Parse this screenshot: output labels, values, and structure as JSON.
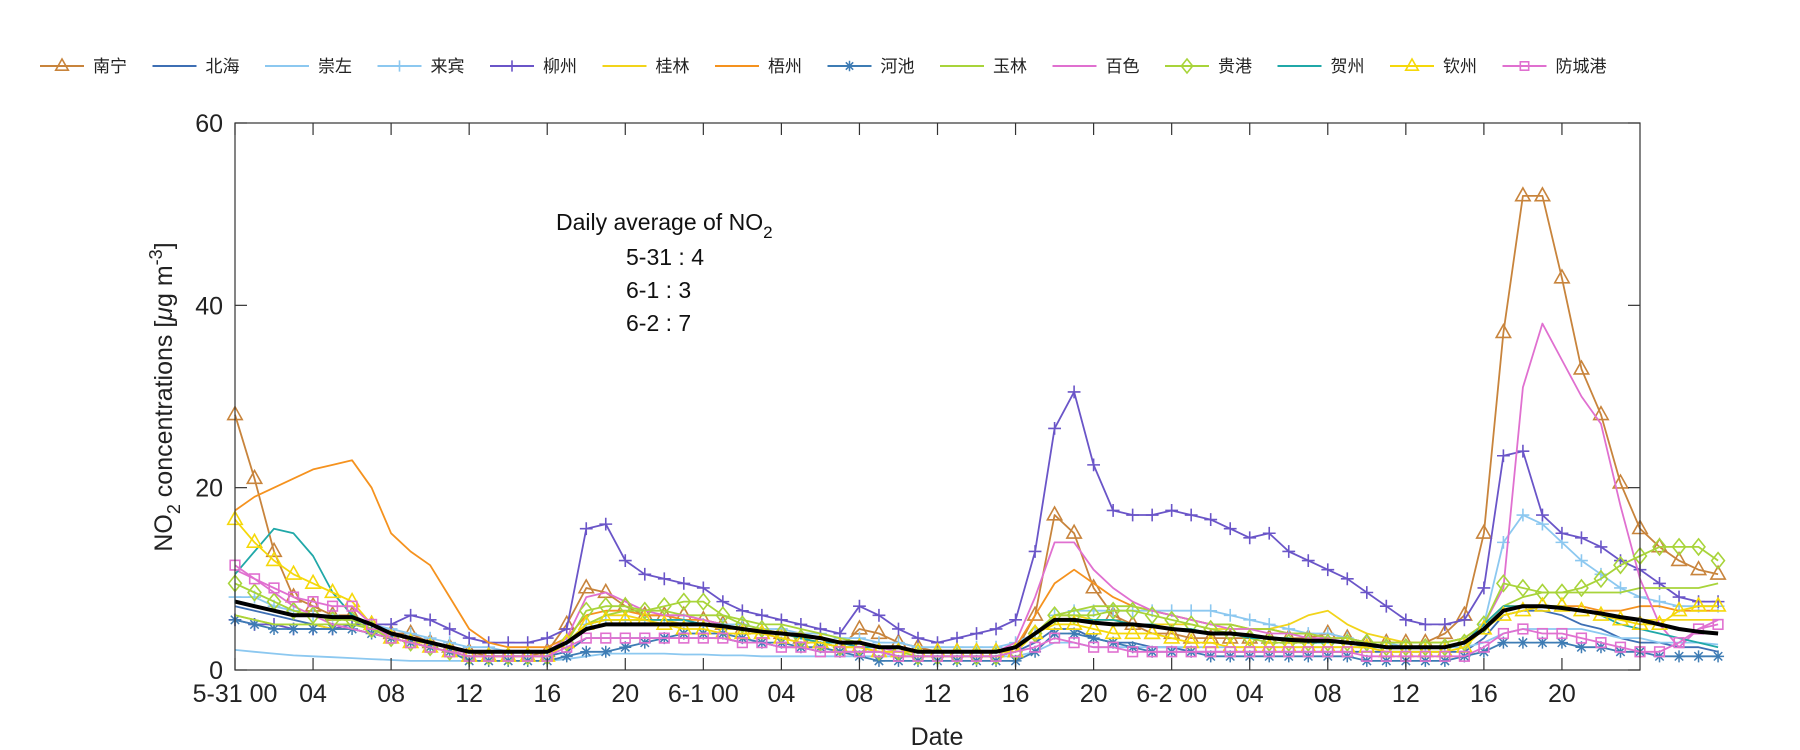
{
  "chart_data": {
    "type": "line",
    "xlabel": "Date",
    "ylabel": "NO",
    "ylabel_sub": "2",
    "ylabel_suffix": " concentrations [",
    "ylabel_mu": "μ",
    "ylabel_unit": "g m",
    "ylabel_sup": "-3",
    "ylabel_end": "]",
    "ylim": [
      0,
      60
    ],
    "yticks": [
      0,
      20,
      40,
      60
    ],
    "x_range": [
      0,
      72
    ],
    "xticks": [
      {
        "x": 0,
        "label": "5-31 00"
      },
      {
        "x": 4,
        "label": "04"
      },
      {
        "x": 8,
        "label": "08"
      },
      {
        "x": 12,
        "label": "12"
      },
      {
        "x": 16,
        "label": "16"
      },
      {
        "x": 20,
        "label": "20"
      },
      {
        "x": 24,
        "label": "6-1 00"
      },
      {
        "x": 28,
        "label": "04"
      },
      {
        "x": 32,
        "label": "08"
      },
      {
        "x": 36,
        "label": "12"
      },
      {
        "x": 40,
        "label": "16"
      },
      {
        "x": 44,
        "label": "20"
      },
      {
        "x": 48,
        "label": "6-2 00"
      },
      {
        "x": 52,
        "label": "04"
      },
      {
        "x": 56,
        "label": "08"
      },
      {
        "x": 60,
        "label": "12"
      },
      {
        "x": 64,
        "label": "16"
      },
      {
        "x": 68,
        "label": "20"
      }
    ],
    "legend_position": "top",
    "grid": false,
    "annotation": {
      "title": "Daily average of NO",
      "title_sub": "2",
      "lines": [
        "5-31 : 4",
        "6-1 : 3",
        "6-2 : 7"
      ]
    },
    "series": [
      {
        "name": "南宁",
        "color": "#c8843c",
        "marker": "triangle",
        "values": [
          28,
          21,
          13,
          8,
          7,
          6,
          6,
          5,
          4,
          4,
          3,
          2.5,
          2,
          1.5,
          1.5,
          1.5,
          2,
          5,
          9,
          8.5,
          7,
          6,
          6,
          6,
          5.5,
          5,
          4.5,
          4,
          4,
          3.5,
          3,
          2.5,
          4.5,
          4,
          3,
          2.5,
          2,
          2,
          2,
          2,
          2,
          6,
          17,
          15,
          9,
          6,
          5,
          4,
          4,
          3.5,
          3.5,
          3.5,
          3.5,
          3.5,
          3.5,
          3.5,
          4,
          3.5,
          3,
          3,
          3,
          3,
          4,
          6,
          15,
          37,
          52,
          52,
          43,
          33,
          28,
          20.5,
          15.5,
          13.5,
          12,
          11,
          10.5
        ]
      },
      {
        "name": "北海",
        "color": "#3e6fb4",
        "marker": "none",
        "values": [
          7,
          6.5,
          6,
          5.5,
          5,
          4.5,
          4.5,
          4,
          3.5,
          3,
          2.5,
          2,
          1.5,
          1.5,
          1.5,
          1.5,
          1.5,
          2,
          3.5,
          3.5,
          3.5,
          3.5,
          3.5,
          3.5,
          3.5,
          3.5,
          3,
          3,
          2.5,
          2.5,
          2,
          2,
          2,
          2,
          1.5,
          1.5,
          1.5,
          1.5,
          1.5,
          1.5,
          2,
          3,
          4.5,
          4.5,
          3.5,
          3,
          3,
          2.5,
          2.5,
          2,
          2,
          2,
          2,
          2,
          2,
          2,
          2,
          2,
          2,
          2,
          2,
          2,
          2,
          2,
          3.5,
          6,
          6.5,
          6.5,
          6,
          5,
          4.5,
          3.5,
          3,
          3,
          2.5,
          2.5,
          2
        ]
      },
      {
        "name": "崇左",
        "color": "#8cc8f0",
        "marker": "none",
        "values": [
          2.2,
          2,
          1.8,
          1.6,
          1.5,
          1.4,
          1.3,
          1.2,
          1.1,
          1,
          1,
          1,
          1,
          1,
          1,
          1,
          1,
          1.2,
          1.5,
          1.8,
          1.8,
          1.8,
          1.8,
          1.7,
          1.7,
          1.6,
          1.6,
          1.5,
          1.5,
          1.5,
          1.5,
          1.5,
          1.5,
          1.5,
          1.5,
          1.5,
          1.5,
          1.5,
          1.5,
          1.5,
          1.5,
          2,
          3,
          3,
          2.5,
          2.5,
          2.5,
          2.5,
          2.5,
          2.5,
          2.5,
          2.5,
          2.5,
          2.5,
          2.5,
          2.5,
          2.5,
          2.5,
          2.5,
          2.5,
          2.5,
          2.5,
          2.5,
          2.5,
          3,
          4,
          4.5,
          4.5,
          4.5,
          4.5,
          4,
          3.5,
          3.5,
          3,
          3,
          3,
          2.8
        ]
      },
      {
        "name": "来宾",
        "color": "#8cc8f0",
        "marker": "plus",
        "values": [
          8,
          8,
          7,
          6.5,
          6,
          6,
          5.5,
          5,
          4.5,
          4,
          3.5,
          3,
          2.5,
          2.5,
          2,
          2,
          2,
          3,
          5,
          5.5,
          5.5,
          5.5,
          5.5,
          5.5,
          5,
          5,
          5,
          4.5,
          4.5,
          4,
          4,
          3.5,
          3.5,
          3,
          3,
          2.5,
          2.5,
          2.5,
          2.5,
          2.5,
          3,
          4,
          6,
          6.5,
          6.5,
          6.5,
          6.5,
          6.5,
          6.5,
          6.5,
          6.5,
          6,
          5.5,
          5,
          4.5,
          4,
          4,
          3.5,
          3,
          3,
          2.5,
          2.5,
          2.5,
          3,
          5,
          14,
          17,
          16,
          14,
          12,
          10.5,
          9,
          8,
          7.5,
          7,
          7,
          7
        ]
      },
      {
        "name": "柳州",
        "color": "#6a55c8",
        "marker": "plus",
        "values": [
          5.5,
          5,
          5,
          4.5,
          4.5,
          4.5,
          5,
          5,
          5,
          6,
          5.5,
          4.5,
          3.5,
          3,
          3,
          3,
          3.5,
          4.5,
          15.5,
          16,
          12,
          10.5,
          10,
          9.5,
          9,
          7.5,
          6.5,
          6,
          5.5,
          5,
          4.5,
          4,
          7,
          6,
          4.5,
          3.5,
          3,
          3.5,
          4,
          4.5,
          5.5,
          13,
          26.5,
          30.5,
          22.5,
          17.5,
          17,
          17,
          17.5,
          17,
          16.5,
          15.5,
          14.5,
          15,
          13,
          12,
          11,
          10,
          8.5,
          7,
          5.5,
          5,
          5,
          5.5,
          9,
          23.5,
          24,
          17,
          15,
          14.5,
          13.5,
          12,
          11,
          9.5,
          8,
          7.5,
          7.5
        ]
      },
      {
        "name": "桂林",
        "color": "#f2d41a",
        "marker": "none",
        "values": [
          6,
          5.5,
          5,
          5,
          5,
          4.5,
          4.5,
          4,
          3.5,
          3,
          3,
          2.5,
          2,
          2,
          2,
          2,
          2,
          3,
          5,
          6,
          6,
          5.5,
          5.5,
          5,
          5,
          4.5,
          4.5,
          4,
          4,
          3.5,
          3.5,
          3,
          3,
          2.5,
          2.5,
          2,
          2,
          2,
          2,
          2,
          2.5,
          4,
          6,
          6,
          5.5,
          5.5,
          5,
          5,
          5,
          5,
          4.5,
          4.5,
          4.5,
          4.5,
          5,
          6,
          6.5,
          5,
          4,
          3.5,
          3,
          3,
          3,
          3.5,
          5,
          7,
          7,
          7,
          7,
          6.5,
          6,
          5.5,
          5.5,
          5.5,
          5.5,
          5.5,
          5.5
        ]
      },
      {
        "name": "梧州",
        "color": "#f5921e",
        "marker": "none",
        "values": [
          17.5,
          19,
          20,
          21,
          22,
          22.5,
          23,
          20,
          15,
          13,
          11.5,
          8,
          4.5,
          3,
          2.5,
          2.5,
          2.5,
          3.5,
          6,
          6.5,
          6.5,
          6,
          6,
          5.5,
          5.5,
          5,
          4.5,
          4.5,
          4,
          4,
          3.5,
          3,
          3,
          2.5,
          2.5,
          2,
          2,
          2,
          2,
          2,
          2.5,
          6,
          9.5,
          11,
          9.5,
          8,
          7,
          6.5,
          6,
          5.5,
          5,
          5,
          4.5,
          4.5,
          4,
          4,
          3.5,
          3.5,
          3,
          3,
          3,
          3,
          3,
          3.5,
          5,
          7,
          7,
          7,
          7,
          7,
          6.5,
          6.5,
          7,
          7,
          6.5,
          6.5,
          6.5
        ]
      },
      {
        "name": "河池",
        "color": "#3e7cb4",
        "marker": "asterisk",
        "values": [
          5.5,
          5,
          4.5,
          4.5,
          4.5,
          4.5,
          4.5,
          4,
          3.5,
          3,
          2.5,
          2,
          1,
          1,
          1,
          1,
          1,
          1.5,
          2,
          2,
          2.5,
          3,
          3.5,
          4,
          4,
          4,
          3.5,
          3,
          3,
          2.5,
          2.5,
          2,
          1.5,
          1,
          1,
          1,
          1,
          1,
          1,
          1,
          1,
          2,
          4,
          4,
          3.5,
          3,
          2.5,
          2,
          2,
          2,
          1.5,
          1.5,
          1.5,
          1.5,
          1.5,
          1.5,
          1.5,
          1.5,
          1,
          1,
          1,
          1,
          1,
          1.5,
          2,
          3,
          3,
          3,
          3,
          2.5,
          2.5,
          2,
          2,
          1.5,
          1.5,
          1.5,
          1.5
        ]
      },
      {
        "name": "玉林",
        "color": "#a8d43a",
        "marker": "none",
        "values": [
          6,
          5.5,
          5,
          5,
          5,
          5,
          5,
          4.5,
          4,
          3.5,
          3,
          2.5,
          2,
          2,
          2,
          2,
          2,
          3,
          5,
          6,
          6.5,
          6.5,
          6.5,
          6,
          6,
          6,
          5.5,
          5,
          5,
          4.5,
          4,
          3.5,
          3,
          2.5,
          2.5,
          2,
          2,
          2,
          2,
          2,
          2.5,
          4,
          6,
          6.5,
          7,
          7,
          7,
          6.5,
          6,
          5.5,
          5,
          5,
          4.5,
          4.5,
          4,
          4,
          3.5,
          3.5,
          3,
          3,
          3,
          3,
          3,
          3.5,
          5,
          7,
          8,
          8.5,
          8.5,
          8.5,
          8.5,
          8.5,
          9,
          9,
          9,
          9,
          9.5
        ]
      },
      {
        "name": "百色",
        "color": "#e070d0",
        "marker": "none",
        "values": [
          11,
          10,
          8.5,
          7,
          6,
          5,
          4.5,
          4,
          3.5,
          3,
          2.5,
          2,
          2,
          2,
          2,
          2,
          2,
          3.5,
          8,
          8.5,
          7.5,
          6.5,
          6,
          6,
          5.5,
          5,
          4.5,
          4,
          3.5,
          3,
          3,
          2.5,
          2.5,
          2.5,
          2,
          2,
          2,
          2,
          2,
          2,
          3,
          8,
          14,
          14,
          11,
          9,
          7.5,
          6.5,
          6,
          5.5,
          5,
          4.5,
          4.5,
          4,
          4,
          3.5,
          3.5,
          3,
          3,
          2.5,
          2.5,
          2.5,
          2.5,
          3,
          5,
          9,
          31,
          38,
          34,
          30,
          27,
          18,
          10,
          5,
          2.5,
          4.5,
          5.5
        ]
      },
      {
        "name": "贵港",
        "color": "#a8d43a",
        "marker": "diamond",
        "values": [
          9.5,
          8.5,
          7.5,
          6.5,
          6,
          5.5,
          5.5,
          4.5,
          3.5,
          3,
          2.5,
          2,
          1.5,
          1.5,
          1.5,
          1.5,
          1.5,
          3,
          6.5,
          7,
          7,
          6.5,
          7,
          7.5,
          7.5,
          6,
          5,
          4.5,
          4,
          3.5,
          3,
          2.5,
          2.5,
          2,
          2,
          1.5,
          1.5,
          1.5,
          1.5,
          1.5,
          2,
          4,
          6,
          6,
          6,
          6.5,
          6.5,
          6,
          5.5,
          5,
          4.5,
          4,
          3.5,
          3,
          3,
          3,
          3,
          3,
          3,
          2.5,
          2.5,
          2.5,
          2.5,
          3,
          5,
          9.5,
          9,
          8.5,
          8.5,
          9,
          10,
          11.5,
          12.5,
          13.5,
          13.5,
          13.5,
          12
        ]
      },
      {
        "name": "贺州",
        "color": "#20a8a8",
        "marker": "none",
        "values": [
          10.5,
          13,
          15.5,
          15,
          12.5,
          8.5,
          6,
          5,
          4,
          3.5,
          3,
          2.5,
          2,
          2,
          2,
          2,
          2,
          3,
          5,
          5.5,
          5.5,
          5.5,
          5.5,
          5.5,
          5,
          5,
          4.5,
          4,
          4,
          3.5,
          3,
          3,
          2.5,
          2.5,
          2.5,
          2,
          2,
          2,
          2,
          2,
          2.5,
          4,
          5.5,
          5.5,
          5.5,
          5.5,
          5,
          5,
          4.5,
          4.5,
          4,
          4,
          3.5,
          3.5,
          3.5,
          3,
          3,
          3,
          2.5,
          2.5,
          2.5,
          2.5,
          2.5,
          3,
          5,
          7,
          7,
          7,
          7,
          6.5,
          6,
          5,
          4.5,
          4,
          3.5,
          3,
          2.5
        ]
      },
      {
        "name": "钦州",
        "color": "#f5d80a",
        "marker": "triangle",
        "values": [
          16.5,
          14,
          12,
          10.5,
          9.5,
          8.5,
          7.5,
          5,
          3.5,
          3,
          2.5,
          2,
          1.5,
          1.5,
          1.5,
          1.5,
          1.5,
          3,
          5,
          5.5,
          5.5,
          5.5,
          5,
          4.5,
          4.5,
          4,
          4,
          4,
          3.5,
          3,
          3,
          2.5,
          2.5,
          2,
          2,
          2,
          2,
          2,
          2,
          2,
          2,
          4,
          5,
          5,
          4.5,
          4,
          4,
          4,
          3.5,
          3,
          3,
          2.5,
          2.5,
          2.5,
          2.5,
          2.5,
          2.5,
          2.5,
          2.5,
          2,
          2,
          2,
          2,
          2.5,
          4.5,
          6,
          6.5,
          7,
          7,
          6.5,
          6,
          5.5,
          5,
          5,
          6.5,
          7,
          7
        ]
      },
      {
        "name": "防城港",
        "color": "#e070d0",
        "marker": "square",
        "values": [
          11.5,
          10,
          9,
          8,
          7.5,
          7,
          7,
          5,
          3.5,
          3,
          2.5,
          2,
          1.5,
          1.5,
          1.5,
          1.5,
          1.5,
          2.5,
          3.5,
          3.5,
          3.5,
          3.5,
          3.5,
          3.5,
          3.5,
          3.5,
          3,
          3,
          2.5,
          2.5,
          2,
          2,
          2,
          2,
          1.5,
          1.5,
          1.5,
          1.5,
          1.5,
          1.5,
          2,
          2.5,
          3.5,
          3,
          2.5,
          2.5,
          2,
          2,
          2,
          2,
          2,
          2,
          2,
          2,
          2,
          2,
          2,
          2,
          1.5,
          1.5,
          1.5,
          1.5,
          1.5,
          1.5,
          2.5,
          4,
          4.5,
          4,
          4,
          3.5,
          3,
          2.5,
          2,
          2,
          3,
          4.5,
          5
        ]
      },
      {
        "name": "",
        "color": "#000000",
        "marker": "none",
        "bold": true,
        "values": [
          7.5,
          7,
          6.5,
          6,
          6,
          5.8,
          5.8,
          5,
          4,
          3.5,
          3,
          2.5,
          2,
          2,
          2,
          2,
          2,
          3,
          4.5,
          5,
          5,
          5,
          5,
          5,
          5,
          4.8,
          4.5,
          4.2,
          4,
          3.8,
          3.5,
          3,
          3,
          2.5,
          2.5,
          2,
          2,
          2,
          2,
          2,
          2.5,
          4,
          5.5,
          5.5,
          5.2,
          5,
          5,
          4.8,
          4.5,
          4.3,
          4,
          4,
          3.8,
          3.5,
          3.3,
          3.2,
          3.2,
          3,
          2.8,
          2.5,
          2.5,
          2.5,
          2.5,
          3,
          4.5,
          6.5,
          7,
          7,
          6.8,
          6.5,
          6.2,
          5.8,
          5.5,
          5,
          4.5,
          4.2,
          4
        ]
      }
    ]
  }
}
